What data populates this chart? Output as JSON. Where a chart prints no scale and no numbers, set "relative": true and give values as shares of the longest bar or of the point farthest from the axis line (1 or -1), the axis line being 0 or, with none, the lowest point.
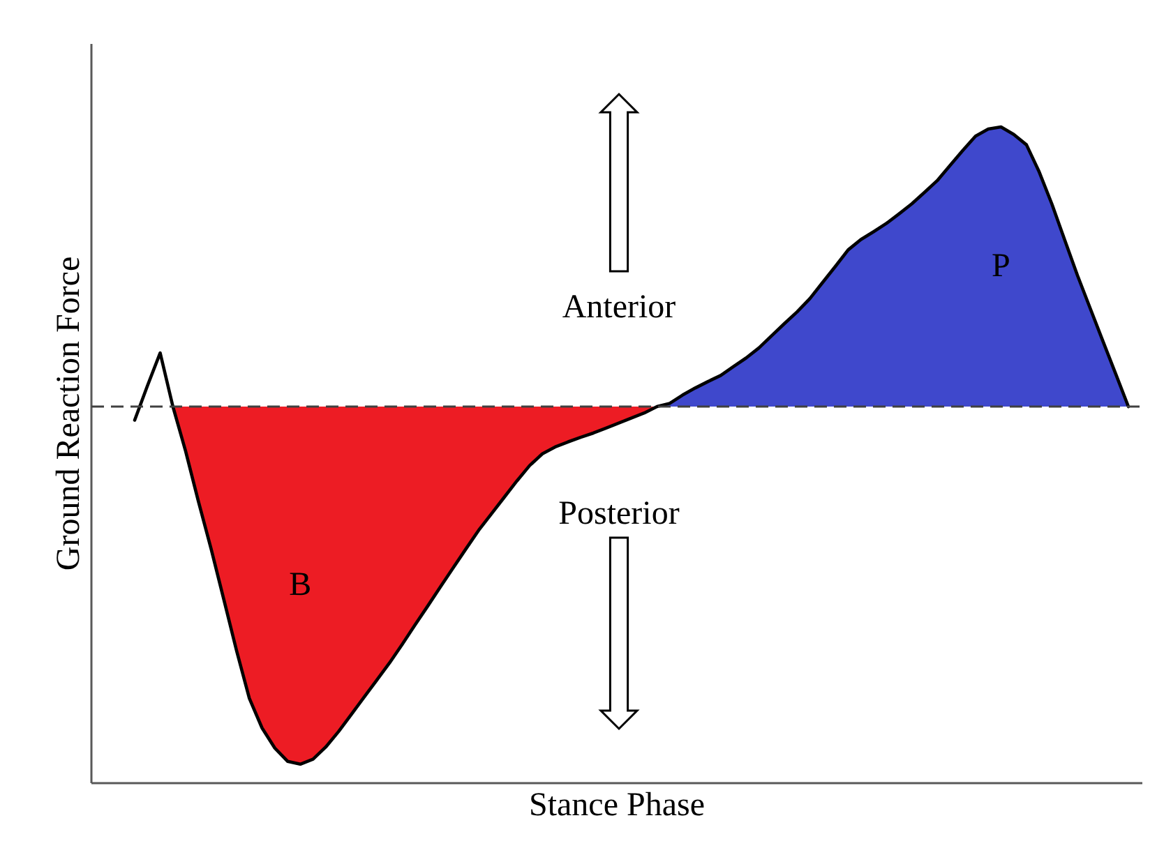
{
  "chart_data": {
    "type": "area",
    "relative": true,
    "xlabel": "Stance Phase",
    "ylabel": "Ground Reaction Force",
    "categories": [
      null,
      null,
      null,
      null,
      null,
      null,
      null,
      null,
      null,
      null,
      null,
      null,
      null,
      null,
      null,
      null,
      null,
      null,
      null,
      null,
      null,
      null,
      null,
      null,
      null,
      null,
      null,
      null,
      null,
      null,
      null,
      null,
      null,
      null,
      null,
      null,
      null,
      null,
      null,
      null,
      null,
      null,
      null,
      null,
      null,
      null,
      null,
      null,
      null,
      null,
      null,
      null,
      null,
      null,
      null,
      null,
      null,
      null,
      null,
      null,
      null,
      null,
      null,
      null,
      null,
      null,
      null,
      null,
      null,
      null,
      null,
      null,
      null,
      null,
      null,
      null,
      null,
      null,
      null
    ],
    "series": [
      {
        "name": "B",
        "color": "#ed1c24",
        "values": [
          null,
          null,
          null,
          0,
          -0.125,
          -0.265,
          -0.398,
          -0.54,
          -0.683,
          -0.816,
          -0.899,
          -0.955,
          -0.992,
          -1,
          -0.986,
          -0.952,
          -0.909,
          -0.861,
          -0.813,
          -0.765,
          -0.717,
          -0.665,
          -0.611,
          -0.558,
          -0.504,
          -0.451,
          -0.398,
          -0.346,
          -0.3,
          -0.254,
          -0.208,
          -0.165,
          -0.132,
          -0.113,
          -0.099,
          -0.086,
          -0.074,
          -0.06,
          -0.046,
          -0.032,
          -0.018,
          0,
          null,
          null,
          null,
          null,
          null,
          null,
          null,
          null,
          null,
          null,
          null,
          null,
          null,
          null,
          null,
          null,
          null,
          null,
          null,
          null,
          null,
          null,
          null,
          null,
          null,
          null,
          null,
          null,
          null,
          null,
          null,
          null,
          null,
          null,
          null,
          null,
          null
        ]
      },
      {
        "name": "P",
        "color": "#3f48cc",
        "values": [
          null,
          null,
          null,
          null,
          null,
          null,
          null,
          null,
          null,
          null,
          null,
          null,
          null,
          null,
          null,
          null,
          null,
          null,
          null,
          null,
          null,
          null,
          null,
          null,
          null,
          null,
          null,
          null,
          null,
          null,
          null,
          null,
          null,
          null,
          null,
          null,
          null,
          null,
          null,
          null,
          null,
          0,
          0.009,
          0.032,
          0.052,
          0.07,
          0.087,
          0.112,
          0.136,
          0.164,
          0.198,
          0.232,
          0.265,
          0.302,
          0.347,
          0.392,
          0.438,
          0.467,
          0.489,
          0.512,
          0.539,
          0.567,
          0.599,
          0.632,
          0.674,
          0.716,
          0.756,
          0.776,
          0.782,
          0.761,
          0.732,
          0.656,
          0.566,
          0.466,
          0.367,
          0.275,
          0.183,
          0.092,
          0
        ]
      },
      {
        "type": "line",
        "color": "#000000",
        "values": [
          -0.038,
          0.058,
          0.15,
          0,
          -0.125,
          -0.265,
          -0.398,
          -0.54,
          -0.683,
          -0.816,
          -0.899,
          -0.955,
          -0.992,
          -1,
          -0.986,
          -0.952,
          -0.909,
          -0.861,
          -0.813,
          -0.765,
          -0.717,
          -0.665,
          -0.611,
          -0.558,
          -0.504,
          -0.451,
          -0.398,
          -0.346,
          -0.3,
          -0.254,
          -0.208,
          -0.165,
          -0.132,
          -0.113,
          -0.099,
          -0.086,
          -0.074,
          -0.06,
          -0.046,
          -0.032,
          -0.018,
          0,
          0.009,
          0.032,
          0.052,
          0.07,
          0.087,
          0.112,
          0.136,
          0.164,
          0.198,
          0.232,
          0.265,
          0.302,
          0.347,
          0.392,
          0.438,
          0.467,
          0.489,
          0.512,
          0.539,
          0.567,
          0.599,
          0.632,
          0.674,
          0.716,
          0.756,
          0.776,
          0.782,
          0.761,
          0.732,
          0.656,
          0.566,
          0.466,
          0.367,
          0.275,
          0.183,
          0.092,
          0
        ]
      }
    ],
    "ref_lines": [
      {
        "axis": "y",
        "value": 0,
        "color": "#404040",
        "line_style": "dashed"
      }
    ],
    "annotations": [
      "Anterior",
      "Posterior"
    ]
  }
}
